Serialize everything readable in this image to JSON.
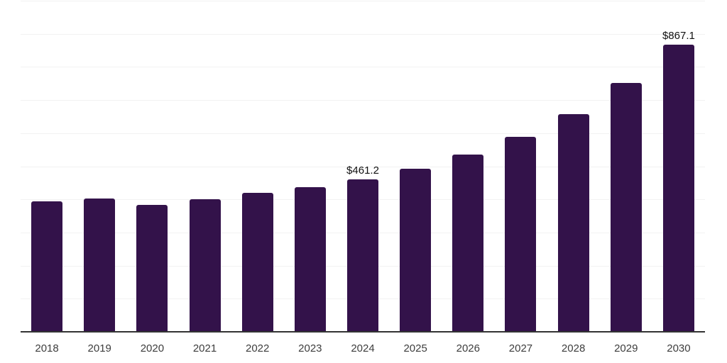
{
  "chart": {
    "background_color": "#ffffff",
    "bar_color": "#33124a",
    "grid_color": "#f2f2f2",
    "axis_color": "#333333",
    "tick_label_color": "#3d3d3d",
    "value_label_color": "#111111"
  },
  "chart_data": {
    "type": "bar",
    "title": "",
    "xlabel": "",
    "ylabel": "",
    "categories": [
      "2018",
      "2019",
      "2020",
      "2021",
      "2022",
      "2023",
      "2024",
      "2025",
      "2026",
      "2027",
      "2028",
      "2029",
      "2030"
    ],
    "values": [
      394,
      403,
      384,
      400,
      419,
      437,
      461.2,
      492,
      535,
      589,
      658,
      751,
      867.1
    ],
    "value_labels": [
      "",
      "",
      "",
      "",
      "",
      "",
      "$461.2",
      "",
      "",
      "",
      "",
      "",
      "$867.1"
    ],
    "ylim": [
      0,
      1000
    ],
    "gridline_step": 100,
    "grid": "horizontal",
    "legend": "none",
    "y_axis_tick_labels_visible": false
  }
}
